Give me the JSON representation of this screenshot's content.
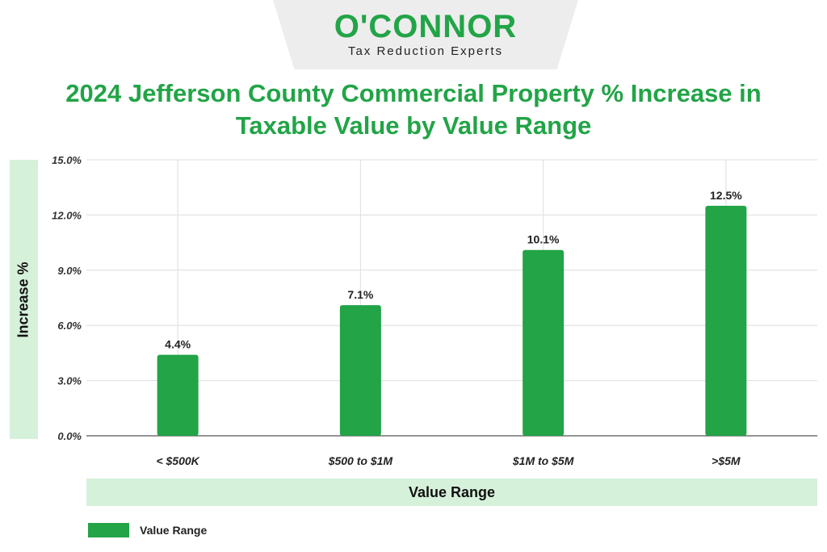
{
  "brand": {
    "name": "O'CONNOR",
    "tagline": "Tax Reduction Experts"
  },
  "chart_data": {
    "type": "bar",
    "title": "2024 Jefferson County Commercial Property % Increase in Taxable Value by Value Range",
    "xlabel": "Value Range",
    "ylabel": "Increase %",
    "categories": [
      "< $500K",
      "$500 to $1M",
      "$1M to $5M",
      ">$5M"
    ],
    "series": [
      {
        "name": "Value Range",
        "values": [
          4.4,
          7.1,
          10.1,
          12.5
        ]
      }
    ],
    "data_labels": [
      "4.4%",
      "7.1%",
      "10.1%",
      "12.5%"
    ],
    "ylim": [
      0,
      15
    ],
    "yticks": [
      0,
      3,
      6,
      9,
      12,
      15
    ],
    "ytick_labels": [
      "0.0%",
      "3.0%",
      "6.0%",
      "9.0%",
      "12.0%",
      "15.0%"
    ],
    "grid": true,
    "legend_position": "bottom-left",
    "bar_color": "#22a447",
    "accent_band_color": "#d6f1da"
  }
}
